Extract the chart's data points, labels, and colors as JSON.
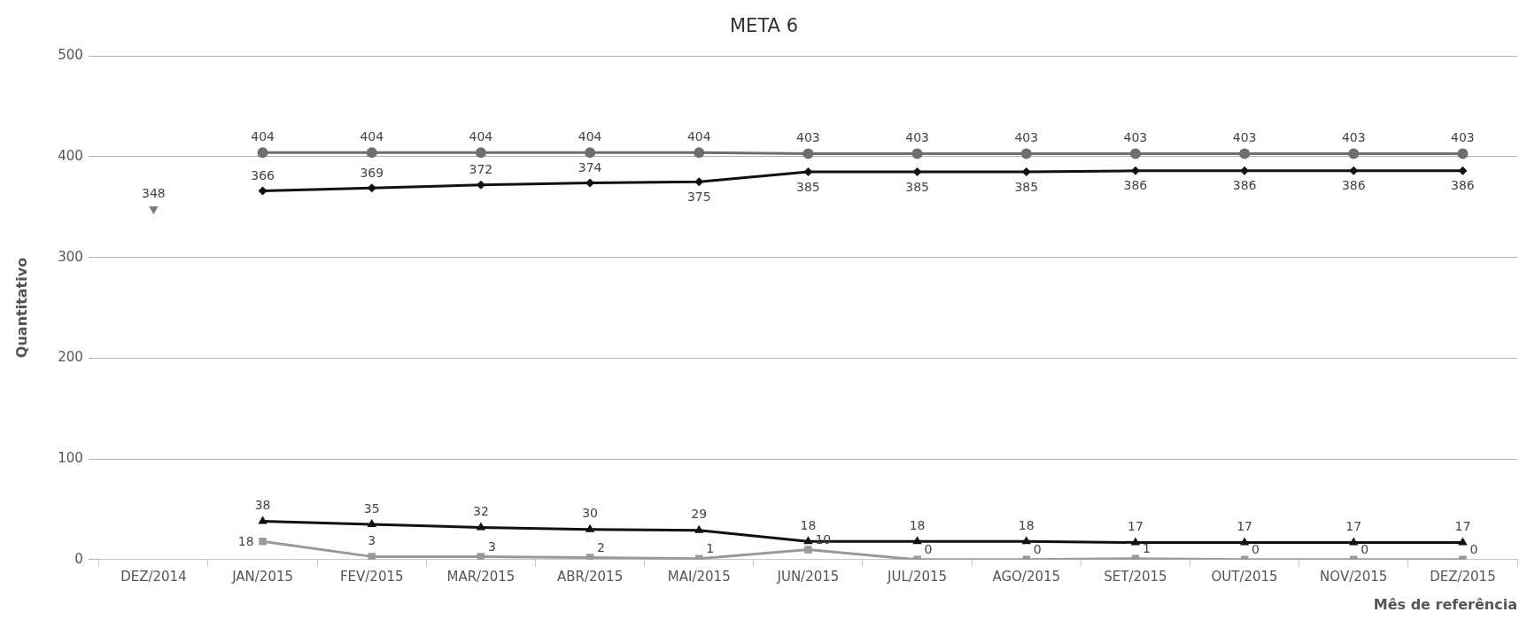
{
  "chart_data": {
    "type": "line",
    "title": "META 6",
    "xlabel": "Mês de referência",
    "ylabel": "Quantitativo",
    "categories": [
      "DEZ/2014",
      "JAN/2015",
      "FEV/2015",
      "MAR/2015",
      "ABR/2015",
      "MAI/2015",
      "JUN/2015",
      "JUL/2015",
      "AGO/2015",
      "SET/2015",
      "OUT/2015",
      "NOV/2015",
      "DEZ/2015"
    ],
    "series": [
      {
        "color": "#6e6e6e",
        "marker": "circle",
        "values": [
          null,
          404,
          404,
          404,
          404,
          404,
          403,
          403,
          403,
          403,
          403,
          403,
          403
        ]
      },
      {
        "color": "#111111",
        "marker": "diamond",
        "values": [
          null,
          366,
          369,
          372,
          374,
          375,
          385,
          385,
          385,
          386,
          386,
          386,
          386
        ]
      },
      {
        "color": "#7a7a7a",
        "marker": "triangle-down",
        "values": [
          348,
          null,
          null,
          null,
          null,
          null,
          null,
          null,
          null,
          null,
          null,
          null,
          null
        ]
      },
      {
        "color": "#111111",
        "marker": "triangle",
        "values": [
          null,
          38,
          35,
          32,
          30,
          29,
          18,
          18,
          18,
          17,
          17,
          17,
          17
        ]
      },
      {
        "color": "#999999",
        "marker": "square",
        "values": [
          null,
          18,
          3,
          3,
          2,
          1,
          10,
          0,
          0,
          1,
          0,
          0,
          0
        ]
      }
    ],
    "ylim": [
      0,
      500
    ],
    "yticks": [
      0,
      100,
      200,
      300,
      400,
      500
    ],
    "grid": "y",
    "data_labels": true
  }
}
